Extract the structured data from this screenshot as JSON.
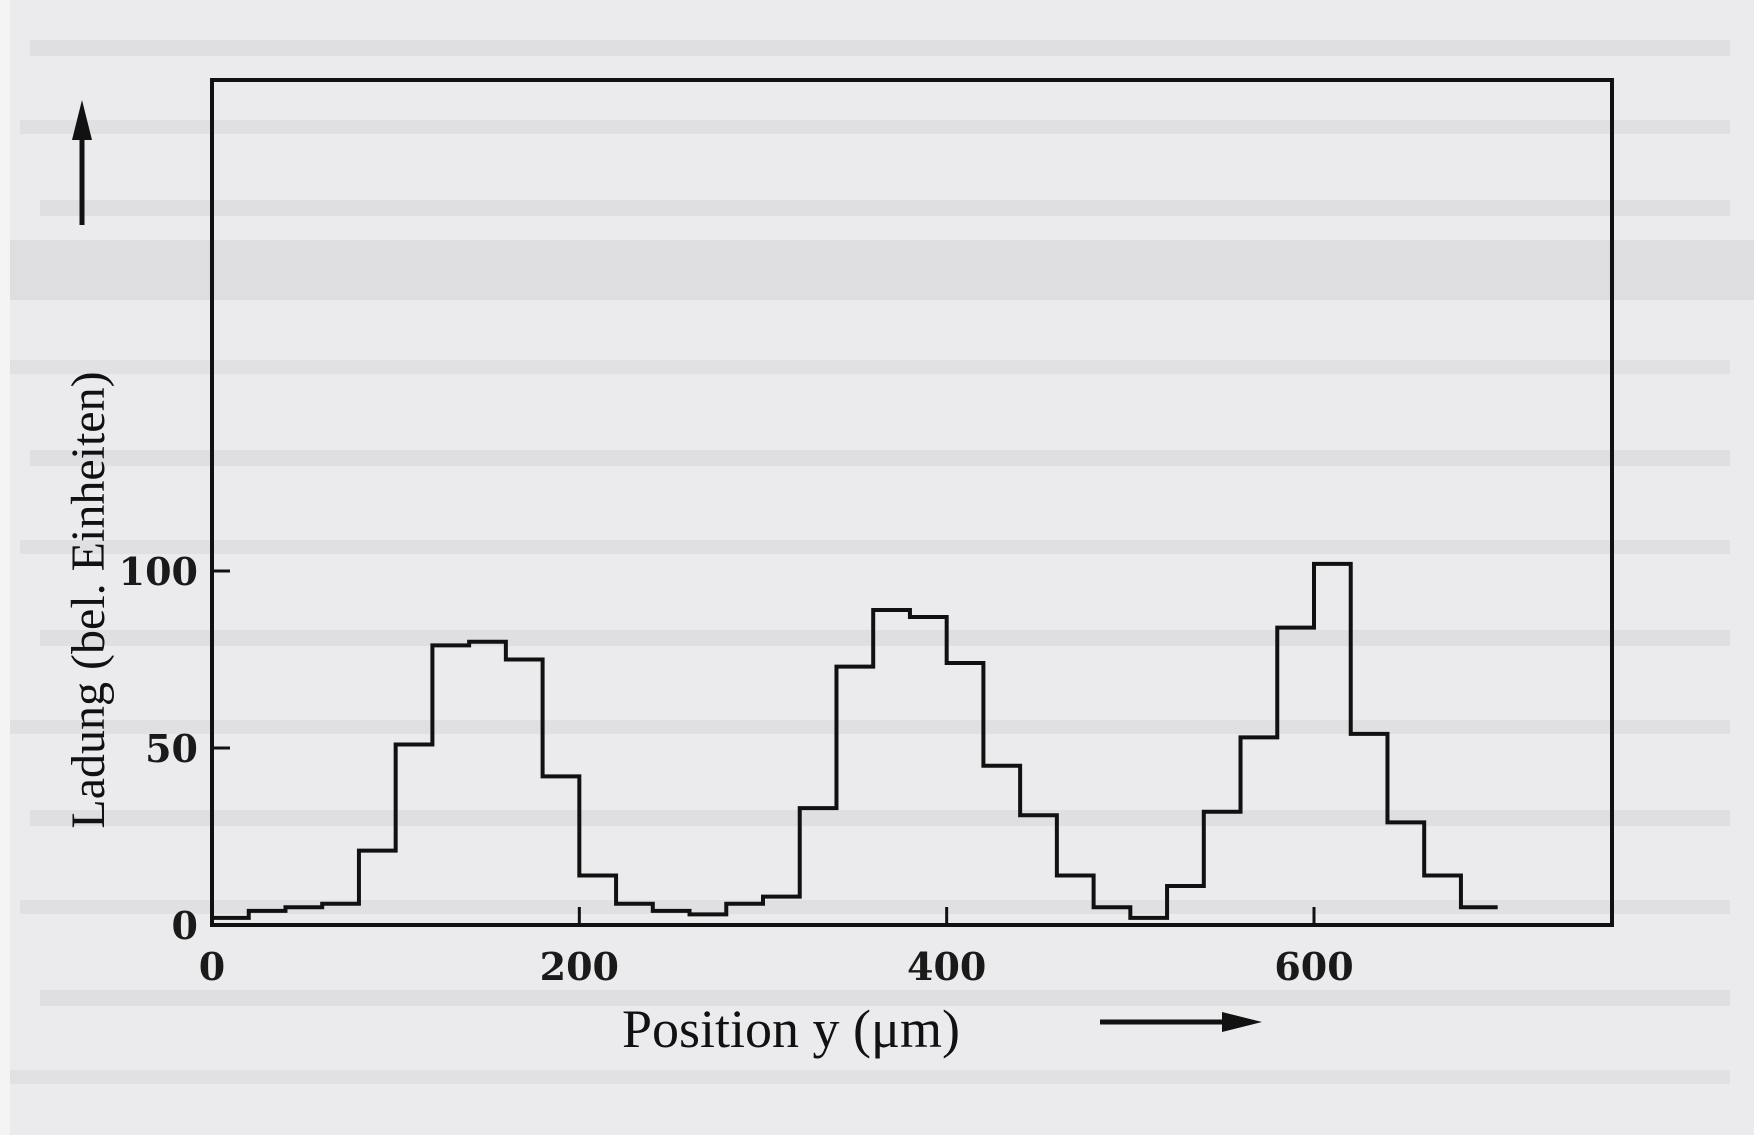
{
  "chart_data": {
    "type": "line",
    "step": true,
    "xlabel": "Position y (μm)",
    "ylabel": "Ladung (bel. Einheiten)",
    "xlim": [
      0,
      760
    ],
    "ylim": [
      0,
      120
    ],
    "xticks": [
      0,
      200,
      400,
      600
    ],
    "xtick_labels": [
      "0",
      "200",
      "400",
      "600"
    ],
    "yticks": [
      0,
      50,
      100
    ],
    "ytick_labels": [
      "0",
      "50",
      "100"
    ],
    "grid": false,
    "series": [
      {
        "bin_width": 20,
        "x": [
          10,
          30,
          50,
          70,
          90,
          110,
          130,
          150,
          170,
          190,
          210,
          230,
          250,
          270,
          290,
          310,
          330,
          350,
          370,
          390,
          410,
          430,
          450,
          470,
          490,
          510,
          530,
          550,
          570,
          590,
          610,
          630,
          650,
          670,
          690
        ],
        "values": [
          2,
          4,
          5,
          6,
          21,
          51,
          79,
          80,
          75,
          42,
          14,
          6,
          4,
          3,
          6,
          8,
          33,
          73,
          89,
          87,
          74,
          45,
          31,
          14,
          5,
          2,
          11,
          32,
          53,
          84,
          102,
          54,
          29,
          14,
          5
        ]
      }
    ]
  }
}
